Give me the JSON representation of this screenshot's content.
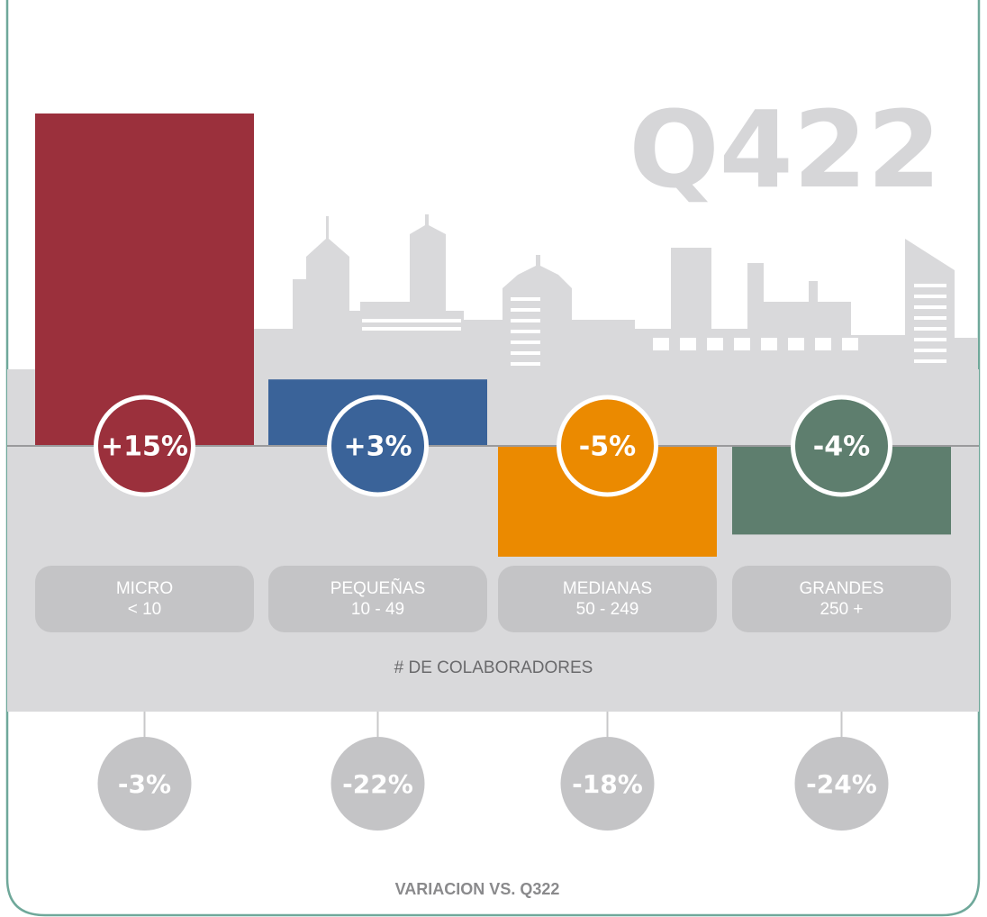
{
  "chart_data": {
    "type": "bar",
    "title": "Q422",
    "categories": [
      "MICRO",
      "PEQUEÑAS",
      "MEDIANAS",
      "GRANDES"
    ],
    "category_ranges": [
      "< 10",
      "10 - 49",
      "50 - 249",
      "250 +"
    ],
    "x_label": "# DE COLABORADORES",
    "values": [
      15,
      3,
      -5,
      -4
    ],
    "value_labels": [
      "+15%",
      "+3%",
      "-5%",
      "-4%"
    ],
    "colors": [
      "#9b303c",
      "#3a6399",
      "#eb8a00",
      "#5e7e6e"
    ],
    "ylim": [
      -5,
      15
    ],
    "comparison": {
      "title": "VARIACION  VS. Q322",
      "values": [
        -3,
        -22,
        -18,
        -24
      ],
      "value_labels": [
        "-3%",
        "-22%",
        "-18%",
        "-24%"
      ],
      "color": "#c4c4c6"
    }
  }
}
